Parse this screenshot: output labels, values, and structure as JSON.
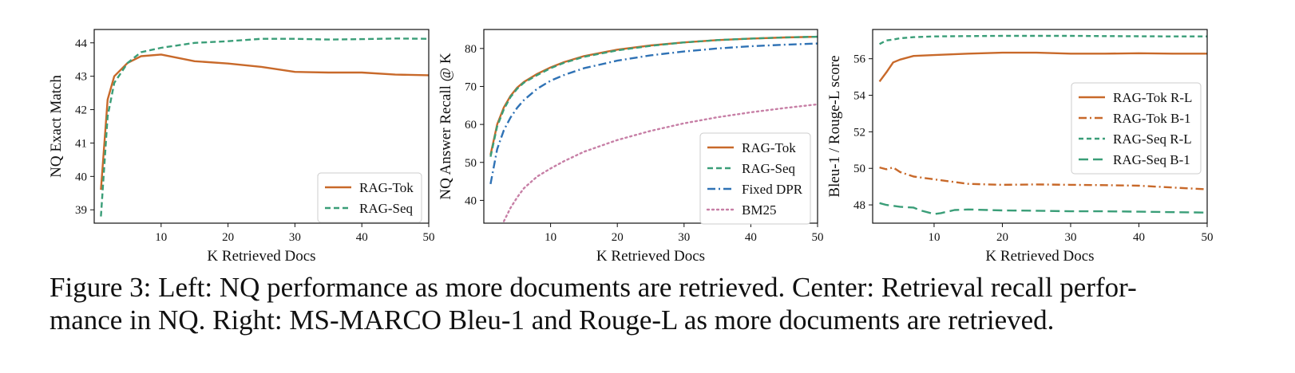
{
  "caption": {
    "line1": "Figure 3: Left: NQ performance as more documents are retrieved. Center: Retrieval recall perfor-",
    "line2": "mance in NQ. Right: MS-MARCO Bleu-1 and Rouge-L as more documents are retrieved."
  },
  "colors": {
    "rag_tok": "#c8692a",
    "rag_seq": "#3a9e78",
    "fixed_dpr": "#2f72b5",
    "bm25": "#c77fa6"
  },
  "chart_data": [
    {
      "type": "line",
      "xlabel": "K Retrieved Docs",
      "ylabel": "NQ Exact Match",
      "xlim": [
        0,
        50
      ],
      "ylim": [
        38.6,
        44.4
      ],
      "xticks": [
        10,
        20,
        30,
        40,
        50
      ],
      "yticks": [
        39,
        40,
        41,
        42,
        43,
        44
      ],
      "legend_position": "lower right",
      "grid": false,
      "series": [
        {
          "name": "RAG-Tok",
          "color": "#c8692a",
          "dash": "solid",
          "x": [
            1,
            2,
            3,
            5,
            7,
            10,
            15,
            20,
            25,
            30,
            35,
            40,
            45,
            50
          ],
          "y": [
            39.6,
            42.3,
            43.0,
            43.4,
            43.6,
            43.65,
            43.45,
            43.38,
            43.28,
            43.13,
            43.11,
            43.11,
            43.05,
            43.03
          ]
        },
        {
          "name": "RAG-Seq",
          "color": "#3a9e78",
          "dash": "dashed",
          "x": [
            1,
            2,
            3,
            5,
            7,
            10,
            15,
            20,
            25,
            30,
            35,
            40,
            45,
            50
          ],
          "y": [
            38.8,
            41.8,
            42.8,
            43.4,
            43.72,
            43.85,
            44.0,
            44.05,
            44.12,
            44.12,
            44.1,
            44.11,
            44.13,
            44.12
          ]
        }
      ]
    },
    {
      "type": "line",
      "xlabel": "K Retrieved Docs",
      "ylabel": "NQ Answer Recall @ K",
      "xlim": [
        0,
        50
      ],
      "ylim": [
        34,
        85
      ],
      "xticks": [
        10,
        20,
        30,
        40,
        50
      ],
      "yticks": [
        40,
        50,
        60,
        70,
        80
      ],
      "legend_position": "lower right",
      "grid": false,
      "series": [
        {
          "name": "RAG-Tok",
          "color": "#c8692a",
          "dash": "solid",
          "x": [
            1,
            2,
            3,
            4,
            5,
            6,
            8,
            10,
            12,
            15,
            20,
            25,
            30,
            35,
            40,
            45,
            50
          ],
          "y": [
            52,
            60,
            64.5,
            67.5,
            69.7,
            71.2,
            73.3,
            75,
            76.4,
            78,
            79.7,
            80.8,
            81.6,
            82.2,
            82.6,
            82.9,
            83.1
          ]
        },
        {
          "name": "RAG-Seq",
          "color": "#3a9e78",
          "dash": "dashed",
          "x": [
            1,
            2,
            3,
            4,
            5,
            6,
            8,
            10,
            12,
            15,
            20,
            25,
            30,
            35,
            40,
            45,
            50
          ],
          "y": [
            51.5,
            59.5,
            64,
            67.2,
            69.4,
            71,
            73,
            74.8,
            76.2,
            77.8,
            79.5,
            80.7,
            81.6,
            82.2,
            82.6,
            82.9,
            83.1
          ]
        },
        {
          "name": "Fixed DPR",
          "color": "#2f72b5",
          "dash": "dashdot",
          "x": [
            1,
            2,
            3,
            4,
            5,
            6,
            8,
            10,
            12,
            15,
            20,
            25,
            30,
            35,
            40,
            45,
            50
          ],
          "y": [
            44.3,
            53.5,
            58.5,
            61.8,
            64.4,
            66.4,
            69.4,
            71.5,
            73,
            74.8,
            76.8,
            78.2,
            79.2,
            80,
            80.6,
            81,
            81.3
          ]
        },
        {
          "name": "BM25",
          "color": "#c77fa6",
          "dash": "dotted",
          "x": [
            3,
            4,
            5,
            6,
            8,
            10,
            12,
            15,
            20,
            25,
            30,
            35,
            40,
            45,
            50
          ],
          "y": [
            34.5,
            38,
            40.8,
            43.2,
            46.3,
            48.4,
            50.3,
            52.8,
            55.9,
            58.3,
            60.3,
            61.9,
            63.2,
            64.3,
            65.3
          ]
        }
      ]
    },
    {
      "type": "line",
      "xlabel": "K Retrieved Docs",
      "ylabel": "Bleu-1 / Rouge-L score",
      "xlim": [
        1,
        50
      ],
      "ylim": [
        47.0,
        57.6
      ],
      "xticks": [
        10,
        20,
        30,
        40,
        50
      ],
      "yticks": [
        48,
        50,
        52,
        54,
        56
      ],
      "legend_position": "center right",
      "grid": false,
      "series": [
        {
          "name": "RAG-Tok R-L",
          "color": "#c8692a",
          "dash": "solid",
          "x": [
            2,
            3,
            4,
            5,
            7,
            10,
            15,
            20,
            25,
            30,
            35,
            40,
            45,
            50
          ],
          "y": [
            54.75,
            55.25,
            55.8,
            55.95,
            56.15,
            56.2,
            56.28,
            56.33,
            56.33,
            56.28,
            56.28,
            56.3,
            56.28,
            56.28
          ]
        },
        {
          "name": "RAG-Tok B-1",
          "color": "#c8692a",
          "dash": "dashdot",
          "x": [
            2,
            3,
            4,
            5,
            7,
            10,
            15,
            20,
            25,
            30,
            35,
            40,
            45,
            50
          ],
          "y": [
            50.05,
            49.95,
            50.05,
            49.8,
            49.55,
            49.4,
            49.15,
            49.1,
            49.12,
            49.1,
            49.08,
            49.05,
            48.95,
            48.85
          ]
        },
        {
          "name": "RAG-Seq R-L",
          "color": "#3a9e78",
          "dash": "shortdash",
          "x": [
            2,
            3,
            4,
            5,
            7,
            10,
            15,
            20,
            25,
            30,
            35,
            40,
            45,
            50
          ],
          "y": [
            56.8,
            57.0,
            57.05,
            57.12,
            57.18,
            57.22,
            57.24,
            57.25,
            57.25,
            57.25,
            57.24,
            57.23,
            57.22,
            57.22
          ]
        },
        {
          "name": "RAG-Seq B-1",
          "color": "#3a9e78",
          "dash": "longdash",
          "x": [
            2,
            3,
            4,
            5,
            7,
            8,
            10,
            11,
            13,
            15,
            20,
            25,
            30,
            35,
            40,
            45,
            50
          ],
          "y": [
            48.1,
            48.0,
            47.95,
            47.9,
            47.85,
            47.7,
            47.5,
            47.55,
            47.72,
            47.75,
            47.7,
            47.68,
            47.65,
            47.65,
            47.63,
            47.6,
            47.58
          ]
        }
      ]
    }
  ]
}
